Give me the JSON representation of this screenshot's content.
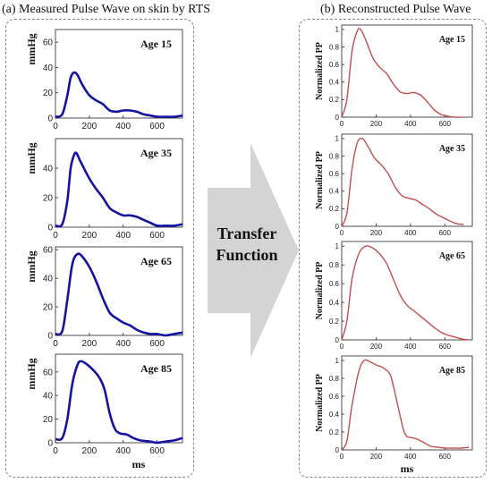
{
  "titles": {
    "left": "(a) Measured Pulse Wave on skin by RTS",
    "right": "(b) Reconstructed Pulse Wave"
  },
  "transfer": {
    "line1": "Transfer",
    "line2": "Function"
  },
  "colors": {
    "measured": "#1414a0",
    "reconstructed": "#c0504d",
    "arrow": "#d4d4d4"
  },
  "chart_data": [
    {
      "type": "line",
      "panel": "a",
      "label": "Age 15",
      "ylabel": "mmHg",
      "xlabel": "",
      "xlim": [
        0,
        750
      ],
      "ylim": [
        0,
        70
      ],
      "yticks": [
        0,
        20,
        40,
        60
      ],
      "xticks": [
        0,
        200,
        400,
        600
      ],
      "x": [
        0,
        40,
        70,
        90,
        110,
        130,
        160,
        200,
        240,
        280,
        320,
        360,
        400,
        440,
        480,
        520,
        560,
        600,
        650,
        700,
        750
      ],
      "values": [
        1,
        3,
        18,
        32,
        36,
        34,
        26,
        18,
        14,
        11,
        6,
        5,
        6,
        6,
        5,
        3,
        2,
        1,
        1,
        1,
        2
      ]
    },
    {
      "type": "line",
      "panel": "a",
      "label": "Age 35",
      "ylabel": "mmHg",
      "xlabel": "",
      "xlim": [
        0,
        750
      ],
      "ylim": [
        0,
        60
      ],
      "yticks": [
        0,
        20,
        40
      ],
      "xticks": [
        0,
        200,
        400,
        600
      ],
      "x": [
        0,
        40,
        70,
        90,
        110,
        125,
        150,
        200,
        240,
        280,
        320,
        360,
        400,
        440,
        480,
        520,
        560,
        600,
        650,
        700,
        750
      ],
      "values": [
        1,
        2,
        18,
        40,
        49,
        50,
        44,
        33,
        26,
        20,
        13,
        10,
        8,
        8,
        7,
        5,
        3,
        1,
        1,
        1,
        2
      ]
    },
    {
      "type": "line",
      "panel": "a",
      "label": "Age 65",
      "ylabel": "mmHg",
      "xlabel": "",
      "xlim": [
        0,
        750
      ],
      "ylim": [
        0,
        62
      ],
      "yticks": [
        0,
        20,
        40,
        60
      ],
      "xticks": [
        0,
        200,
        400,
        600
      ],
      "x": [
        0,
        40,
        70,
        100,
        130,
        160,
        200,
        240,
        280,
        320,
        360,
        400,
        440,
        480,
        520,
        560,
        600,
        650,
        700,
        750
      ],
      "values": [
        1,
        3,
        25,
        50,
        57,
        55,
        48,
        38,
        26,
        16,
        12,
        9,
        7,
        4,
        2,
        1,
        1,
        0,
        1,
        2
      ]
    },
    {
      "type": "line",
      "panel": "a",
      "label": "Age 85",
      "ylabel": "mmHg",
      "xlabel": "ms",
      "xlim": [
        0,
        750
      ],
      "ylim": [
        0,
        75
      ],
      "yticks": [
        0,
        20,
        40,
        60
      ],
      "xticks": [
        0,
        200,
        400,
        600
      ],
      "x": [
        0,
        40,
        70,
        100,
        130,
        150,
        180,
        220,
        260,
        290,
        320,
        350,
        380,
        420,
        460,
        500,
        560,
        600,
        650,
        700,
        750
      ],
      "values": [
        3,
        4,
        20,
        50,
        66,
        69,
        67,
        62,
        55,
        45,
        25,
        12,
        8,
        7,
        4,
        2,
        1,
        0,
        1,
        2,
        4
      ]
    },
    {
      "type": "line",
      "panel": "b",
      "label": "Age 15",
      "ylabel": "Normalized PP",
      "xlabel": "",
      "xlim": [
        0,
        760
      ],
      "ylim": [
        0,
        1.05
      ],
      "yticks": [
        0,
        0.2,
        0.4,
        0.6,
        0.8,
        1
      ],
      "yticklabels": [
        "0",
        "0.2",
        "0.4",
        "0.6",
        "0.8",
        "1"
      ],
      "xticks": [
        0,
        200,
        400,
        600
      ],
      "x": [
        0,
        30,
        60,
        90,
        110,
        140,
        180,
        220,
        260,
        300,
        340,
        380,
        420,
        460,
        500,
        540,
        580,
        620,
        660,
        700
      ],
      "values": [
        0,
        0.2,
        0.75,
        0.98,
        1.0,
        0.88,
        0.68,
        0.57,
        0.5,
        0.38,
        0.29,
        0.27,
        0.28,
        0.25,
        0.17,
        0.08,
        0.03,
        0.01,
        0,
        0
      ]
    },
    {
      "type": "line",
      "panel": "b",
      "label": "Age 35",
      "ylabel": "Normalized PP",
      "xlabel": "",
      "xlim": [
        0,
        760
      ],
      "ylim": [
        0,
        1.05
      ],
      "yticks": [
        0,
        0.2,
        0.4,
        0.6,
        0.8,
        1
      ],
      "yticklabels": [
        "0",
        "0.2",
        "0.4",
        "0.6",
        "0.8",
        "1"
      ],
      "xticks": [
        0,
        200,
        400,
        600
      ],
      "x": [
        0,
        30,
        60,
        90,
        120,
        150,
        190,
        230,
        270,
        310,
        350,
        390,
        430,
        470,
        510,
        550,
        590,
        630,
        670,
        710
      ],
      "values": [
        0,
        0.15,
        0.65,
        0.95,
        1.0,
        0.92,
        0.78,
        0.7,
        0.6,
        0.45,
        0.35,
        0.32,
        0.3,
        0.25,
        0.2,
        0.14,
        0.1,
        0.06,
        0.03,
        0.02
      ]
    },
    {
      "type": "line",
      "panel": "b",
      "label": "Age 65",
      "ylabel": "Normalized PP",
      "xlabel": "",
      "xlim": [
        0,
        760
      ],
      "ylim": [
        0,
        1.05
      ],
      "yticks": [
        0,
        0.2,
        0.4,
        0.6,
        0.8,
        1
      ],
      "yticklabels": [
        "0",
        "0.2",
        "0.4",
        "0.6",
        "0.8",
        "1"
      ],
      "xticks": [
        0,
        200,
        400,
        600
      ],
      "x": [
        0,
        30,
        60,
        100,
        140,
        180,
        220,
        260,
        300,
        340,
        380,
        420,
        460,
        500,
        540,
        580,
        620,
        660,
        700,
        740
      ],
      "values": [
        0,
        0.2,
        0.65,
        0.92,
        1.0,
        0.98,
        0.92,
        0.82,
        0.65,
        0.48,
        0.37,
        0.31,
        0.25,
        0.19,
        0.13,
        0.08,
        0.05,
        0.03,
        0.01,
        0
      ]
    },
    {
      "type": "line",
      "panel": "b",
      "label": "Age 85",
      "ylabel": "Normalized PP",
      "xlabel": "ms",
      "xlim": [
        0,
        760
      ],
      "ylim": [
        0,
        1.05
      ],
      "yticks": [
        0,
        0.2,
        0.4,
        0.6,
        0.8,
        1
      ],
      "yticklabels": [
        "0",
        "0.2",
        "0.4",
        "0.6",
        "0.8",
        "1"
      ],
      "xticks": [
        0,
        200,
        400,
        600
      ],
      "x": [
        0,
        30,
        60,
        100,
        130,
        160,
        200,
        240,
        280,
        300,
        320,
        340,
        360,
        380,
        400,
        440,
        480,
        520,
        560,
        600,
        650,
        700,
        740
      ],
      "values": [
        0,
        0.1,
        0.5,
        0.88,
        1.0,
        0.99,
        0.95,
        0.92,
        0.85,
        0.72,
        0.55,
        0.38,
        0.22,
        0.15,
        0.14,
        0.12,
        0.08,
        0.04,
        0.03,
        0.02,
        0.02,
        0.02,
        0.03
      ]
    }
  ]
}
